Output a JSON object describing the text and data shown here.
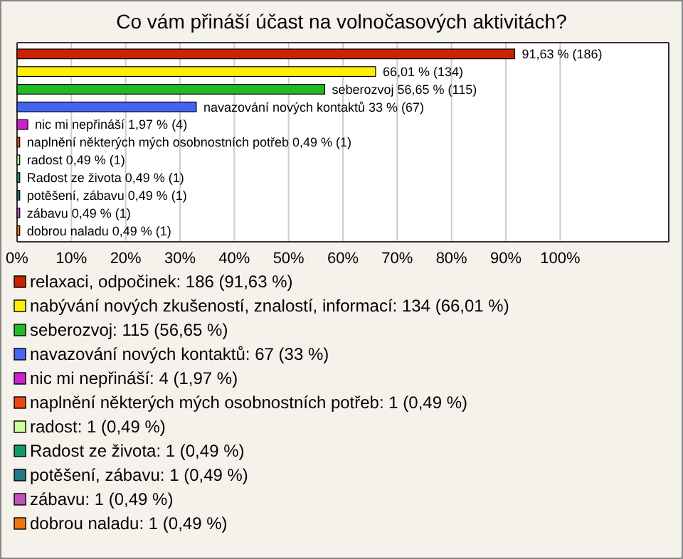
{
  "chart_data": {
    "type": "bar",
    "orientation": "horizontal",
    "stacked": true,
    "title": "Co vám přináší účast na volnočasových aktivitách?",
    "categories": [
      null,
      null,
      null,
      null,
      null,
      null,
      null,
      null,
      null,
      null,
      null
    ],
    "series": [
      {
        "name": "relaxaci, odpočinek: 186 (91,63 %)",
        "color": "#cc2200",
        "values": [
          91.63,
          null,
          null,
          null,
          null,
          null,
          null,
          null,
          null,
          null,
          null
        ],
        "value_labels": [
          "91,63 % (186)",
          null,
          null,
          null,
          null,
          null,
          null,
          null,
          null,
          null,
          null
        ]
      },
      {
        "name": "nabývání nových zkušeností, znalostí, informací: 134 (66,01 %)",
        "color": "#ffee00",
        "values": [
          null,
          66.01,
          null,
          null,
          null,
          null,
          null,
          null,
          null,
          null,
          null
        ],
        "value_labels": [
          null,
          "66,01 % (134)",
          null,
          null,
          null,
          null,
          null,
          null,
          null,
          null,
          null
        ]
      },
      {
        "name": "seberozvoj: 115 (56,65 %)",
        "color": "#22bb22",
        "values": [
          null,
          null,
          56.65,
          null,
          null,
          null,
          null,
          null,
          null,
          null,
          null
        ],
        "value_labels": [
          null,
          null,
          "seberozvoj 56,65 % (115)",
          null,
          null,
          null,
          null,
          null,
          null,
          null,
          null
        ]
      },
      {
        "name": "navazování nových kontaktů: 67 (33 %)",
        "color": "#4466ee",
        "values": [
          null,
          null,
          null,
          33,
          null,
          null,
          null,
          null,
          null,
          null,
          null
        ],
        "value_labels": [
          null,
          null,
          null,
          "navazování nových kontaktů 33 % (67)",
          null,
          null,
          null,
          null,
          null,
          null,
          null
        ]
      },
      {
        "name": "nic mi nepřináší: 4 (1,97 %)",
        "color": "#cc22cc",
        "values": [
          null,
          null,
          null,
          null,
          1.97,
          null,
          null,
          null,
          null,
          null,
          null
        ],
        "value_labels": [
          null,
          null,
          null,
          null,
          "nic mi nepřináší 1,97 % (4)",
          null,
          null,
          null,
          null,
          null,
          null
        ]
      },
      {
        "name": "naplnění některých mých osobnostních potřeb: 1 (0,49 %)",
        "color": "#ee4411",
        "values": [
          null,
          null,
          null,
          null,
          null,
          0.49,
          null,
          null,
          null,
          null,
          null
        ],
        "value_labels": [
          null,
          null,
          null,
          null,
          null,
          "naplnění některých mých osobnostních potřeb 0,49 % (1)",
          null,
          null,
          null,
          null,
          null
        ]
      },
      {
        "name": "radost: 1 (0,49 %)",
        "color": "#ccff99",
        "values": [
          null,
          null,
          null,
          null,
          null,
          null,
          0.49,
          null,
          null,
          null,
          null
        ],
        "value_labels": [
          null,
          null,
          null,
          null,
          null,
          null,
          "radost 0,49 % (1)",
          null,
          null,
          null,
          null
        ]
      },
      {
        "name": "Radost ze života: 1 (0,49 %)",
        "color": "#119966",
        "values": [
          null,
          null,
          null,
          null,
          null,
          null,
          null,
          0.49,
          null,
          null,
          null
        ],
        "value_labels": [
          null,
          null,
          null,
          null,
          null,
          null,
          null,
          "Radost ze života 0,49 % (1)",
          null,
          null,
          null
        ]
      },
      {
        "name": "potěšení, zábavu: 1 (0,49 %)",
        "color": "#227788",
        "values": [
          null,
          null,
          null,
          null,
          null,
          null,
          null,
          null,
          0.49,
          null,
          null
        ],
        "value_labels": [
          null,
          null,
          null,
          null,
          null,
          null,
          null,
          null,
          "potěšení, zábavu 0,49 % (1)",
          null,
          null
        ]
      },
      {
        "name": "zábavu: 1 (0,49 %)",
        "color": "#bb55bb",
        "values": [
          null,
          null,
          null,
          null,
          null,
          null,
          null,
          null,
          null,
          0.49,
          null
        ],
        "value_labels": [
          null,
          null,
          null,
          null,
          null,
          null,
          null,
          null,
          null,
          "zábavu 0,49 % (1)",
          null
        ]
      },
      {
        "name": "dobrou naladu: 1 (0,49 %)",
        "color": "#ee7711",
        "values": [
          null,
          null,
          null,
          null,
          null,
          null,
          null,
          null,
          null,
          null,
          0.49
        ],
        "value_labels": [
          null,
          null,
          null,
          null,
          null,
          null,
          null,
          null,
          null,
          null,
          "dobrou naladu 0,49 % (1)"
        ]
      }
    ],
    "xlim": [
      0,
      120
    ],
    "xticks": [
      {
        "value": 0,
        "label": "0%"
      },
      {
        "value": 10,
        "label": "10%"
      },
      {
        "value": 20,
        "label": "20%"
      },
      {
        "value": 30,
        "label": "30%"
      },
      {
        "value": 40,
        "label": "40%"
      },
      {
        "value": 50,
        "label": "50%"
      },
      {
        "value": 60,
        "label": "60%"
      },
      {
        "value": 70,
        "label": "70%"
      },
      {
        "value": 80,
        "label": "80%"
      },
      {
        "value": 90,
        "label": "90%"
      },
      {
        "value": 100,
        "label": "100%"
      }
    ],
    "grid": "x",
    "legend": "bottom"
  }
}
